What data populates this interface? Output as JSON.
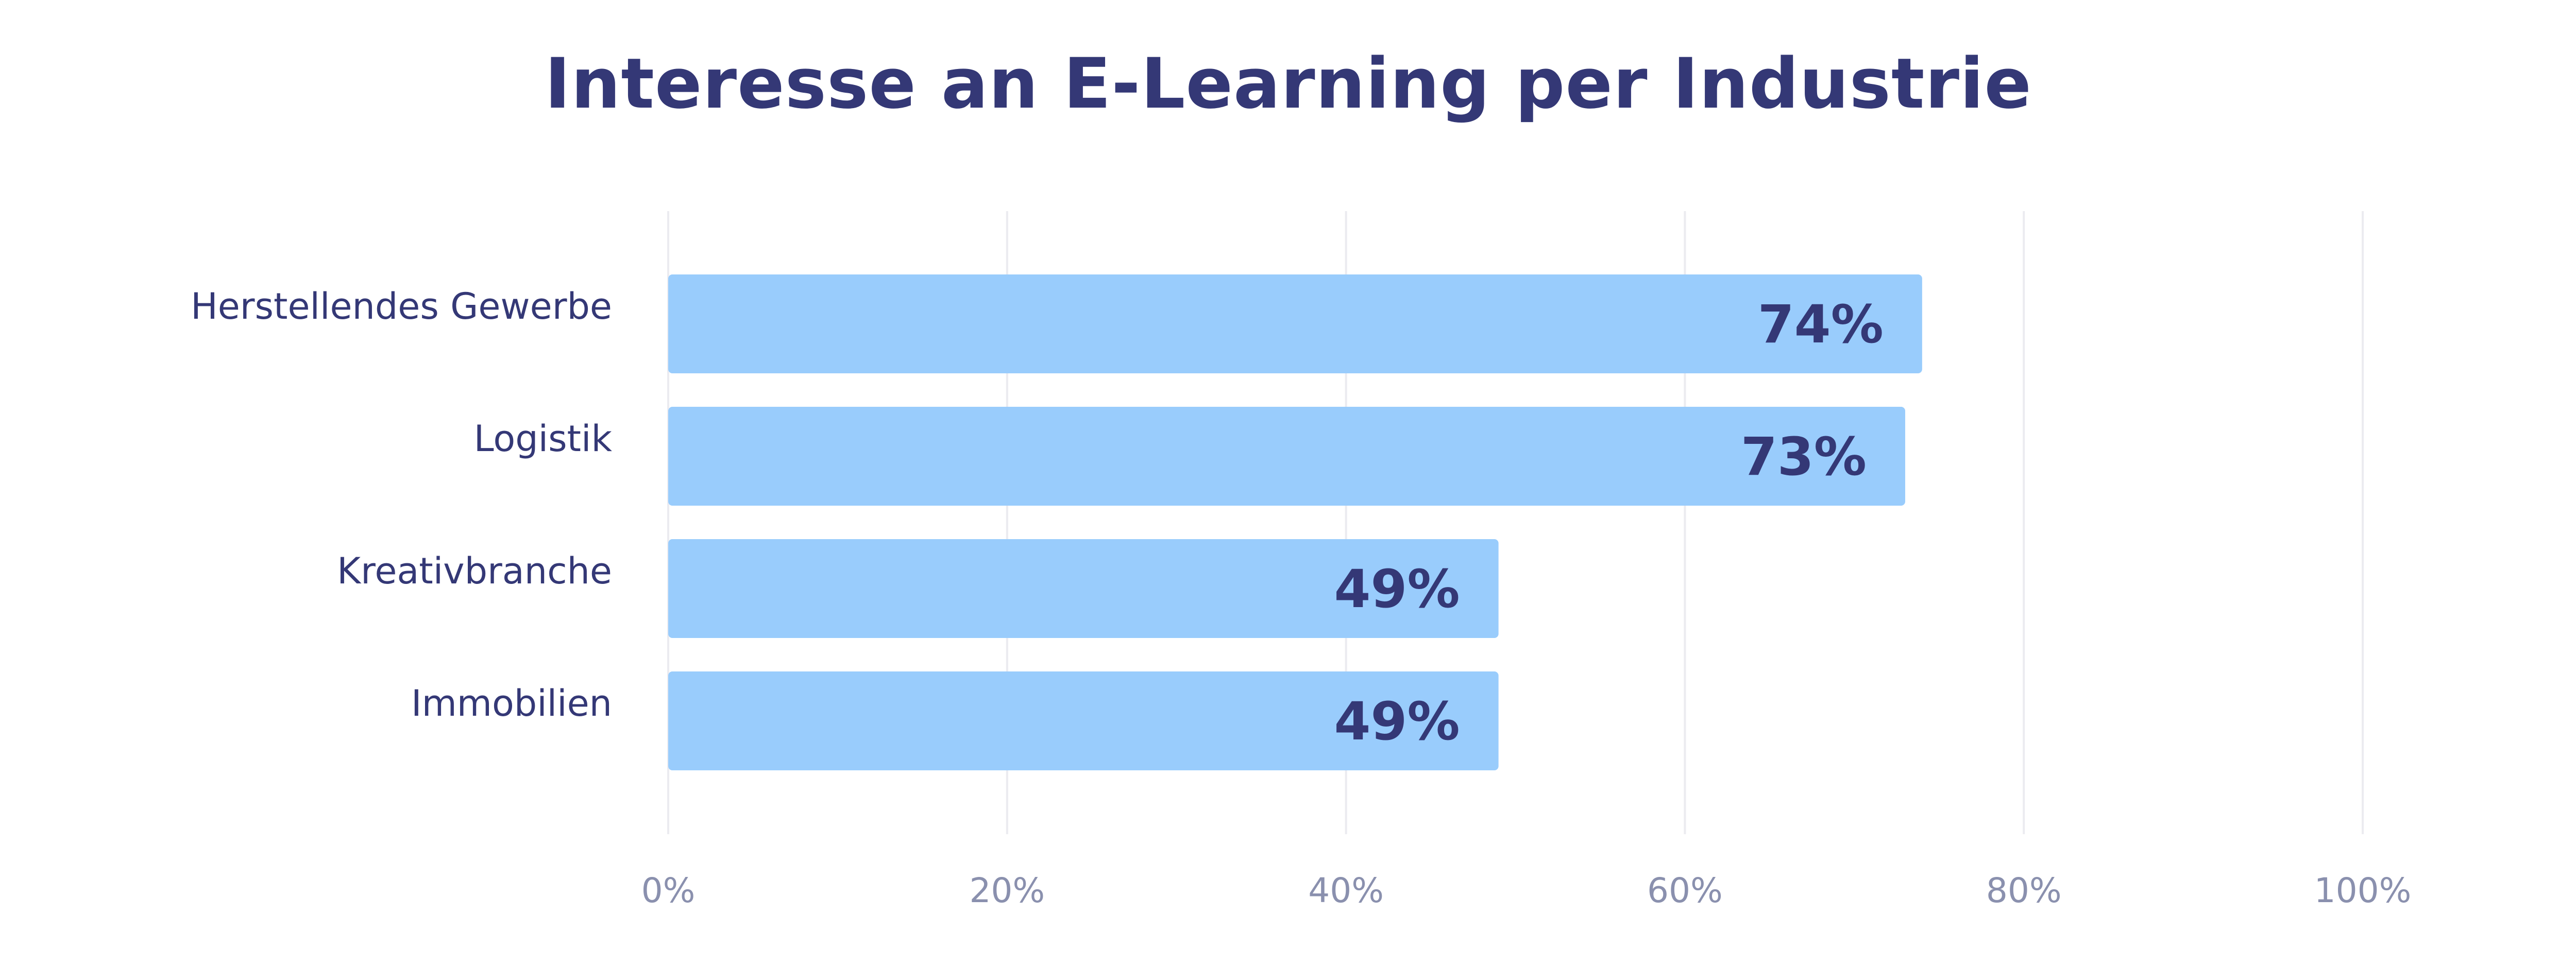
{
  "colors": {
    "title": "#343876",
    "bar": "#99ccfc",
    "value_label": "#343876",
    "category_label": "#343876",
    "tick_label": "#8a90ae",
    "grid": "#ebebf0"
  },
  "chart_data": {
    "type": "bar",
    "orientation": "horizontal",
    "title": "Interesse an E-Learning per Industrie",
    "xlabel": "",
    "ylabel": "",
    "categories": [
      "Herstellendes Gewerbe",
      "Logistik",
      "Kreativbranche",
      "Immobilien"
    ],
    "values": [
      74,
      73,
      49,
      49
    ],
    "value_labels": [
      "74%",
      "73%",
      "49%",
      "49%"
    ],
    "xlim": [
      0,
      100
    ],
    "ticks": [
      0,
      20,
      40,
      60,
      80,
      100
    ],
    "tick_labels": [
      "0%",
      "20%",
      "40%",
      "60%",
      "80%",
      "100%"
    ],
    "grid": true,
    "legend": "none"
  }
}
